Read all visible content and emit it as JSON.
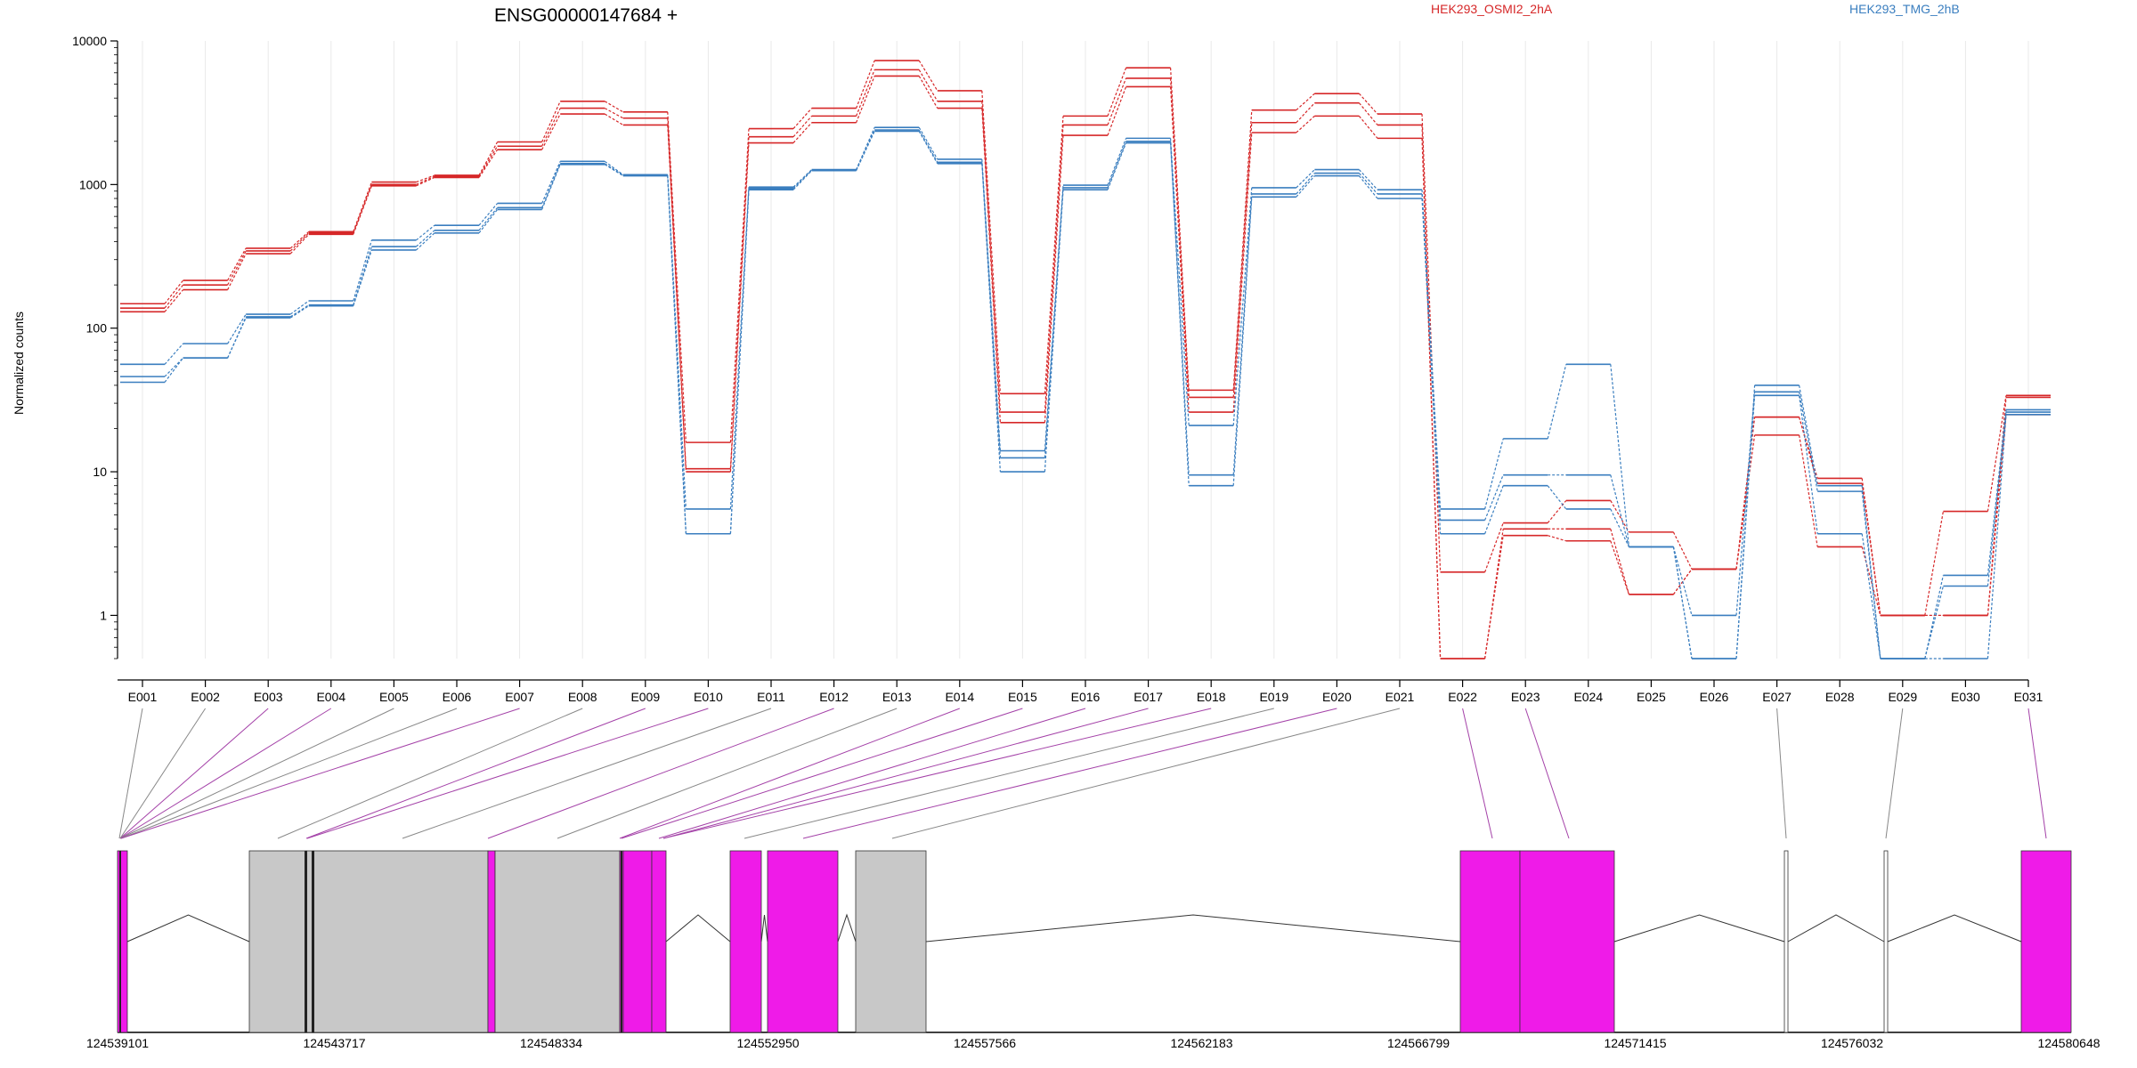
{
  "chart_data": {
    "type": "line",
    "title": "ENSG00000147684 +",
    "xlabel": "",
    "ylabel": "Normalized counts",
    "y_scale": "log",
    "ylim": [
      0.5,
      10000
    ],
    "y_ticks": [
      1,
      10,
      100,
      1000,
      10000
    ],
    "y_tick_labels": [
      "1",
      "10",
      "100",
      "1000",
      "10000"
    ],
    "grid": "vertical",
    "legend": {
      "placement": "top-right",
      "entries": [
        {
          "label": "HEK293_OSMI2_2hA",
          "color": "#d62728"
        },
        {
          "label": "HEK293_TMG_2hB",
          "color": "#3a7ebf"
        }
      ]
    },
    "categories": [
      "E001",
      "E002",
      "E003",
      "E004",
      "E005",
      "E006",
      "E007",
      "E008",
      "E009",
      "E010",
      "E011",
      "E012",
      "E013",
      "E014",
      "E015",
      "E016",
      "E017",
      "E018",
      "E019",
      "E020",
      "E021",
      "E022",
      "E023",
      "E024",
      "E025",
      "E026",
      "E027",
      "E028",
      "E029",
      "E030",
      "E031"
    ],
    "series": [
      {
        "group": "HEK293_OSMI2_2hA",
        "color": "#d62728",
        "values": [
          148,
          215,
          360,
          470,
          1040,
          1160,
          1980,
          3800,
          3200,
          16,
          2450,
          3400,
          7300,
          4500,
          35,
          3000,
          6500,
          37,
          3300,
          4300,
          3100,
          2,
          4.4,
          6.3,
          3.8,
          2.1,
          24,
          9,
          1,
          5.3,
          34
        ]
      },
      {
        "group": "HEK293_OSMI2_2hA",
        "color": "#d62728",
        "values": [
          138,
          200,
          345,
          460,
          1000,
          1140,
          1850,
          3400,
          2900,
          10.5,
          2150,
          3000,
          6300,
          3800,
          26,
          2600,
          5500,
          33,
          2700,
          3700,
          2600,
          0.5,
          4,
          4,
          1.4,
          2.1,
          24,
          8.3,
          1,
          1,
          33
        ]
      },
      {
        "group": "HEK293_OSMI2_2hA",
        "color": "#d62728",
        "values": [
          130,
          185,
          330,
          450,
          980,
          1120,
          1750,
          3100,
          2600,
          10,
          1950,
          2700,
          5700,
          3400,
          22,
          2200,
          4800,
          26,
          2300,
          3000,
          2100,
          0.5,
          3.6,
          3.3,
          1.4,
          2.1,
          18,
          3,
          1,
          1,
          25
        ]
      },
      {
        "group": "HEK293_TMG_2hB",
        "color": "#3a7ebf",
        "values": [
          56,
          78,
          125,
          155,
          410,
          520,
          740,
          1450,
          1170,
          5.5,
          960,
          1270,
          2500,
          1500,
          14,
          990,
          2100,
          21,
          950,
          1270,
          920,
          5.5,
          17,
          56,
          3,
          0.5,
          40,
          8,
          0.5,
          1.9,
          27
        ]
      },
      {
        "group": "HEK293_TMG_2hB",
        "color": "#3a7ebf",
        "values": [
          46,
          62,
          120,
          145,
          370,
          480,
          690,
          1400,
          1160,
          3.7,
          940,
          1260,
          2400,
          1430,
          12.5,
          950,
          2000,
          9.5,
          860,
          1200,
          860,
          4.6,
          9.5,
          9.5,
          3,
          1,
          36,
          7.3,
          0.5,
          1.6,
          26
        ]
      },
      {
        "group": "HEK293_TMG_2hB",
        "color": "#3a7ebf",
        "values": [
          42,
          62,
          118,
          143,
          350,
          460,
          670,
          1380,
          1150,
          3.7,
          920,
          1250,
          2350,
          1400,
          10,
          920,
          1950,
          8,
          820,
          1150,
          800,
          3.7,
          8,
          5.5,
          3,
          0.5,
          34,
          3.7,
          0.5,
          0.5,
          25
        ]
      }
    ],
    "gene_model": {
      "coordinate_ticks": [
        "124539101",
        "124543717",
        "124548334",
        "124552950",
        "124557566",
        "124562183",
        "124566799",
        "124571415",
        "124576032",
        "124580648"
      ]
    }
  }
}
